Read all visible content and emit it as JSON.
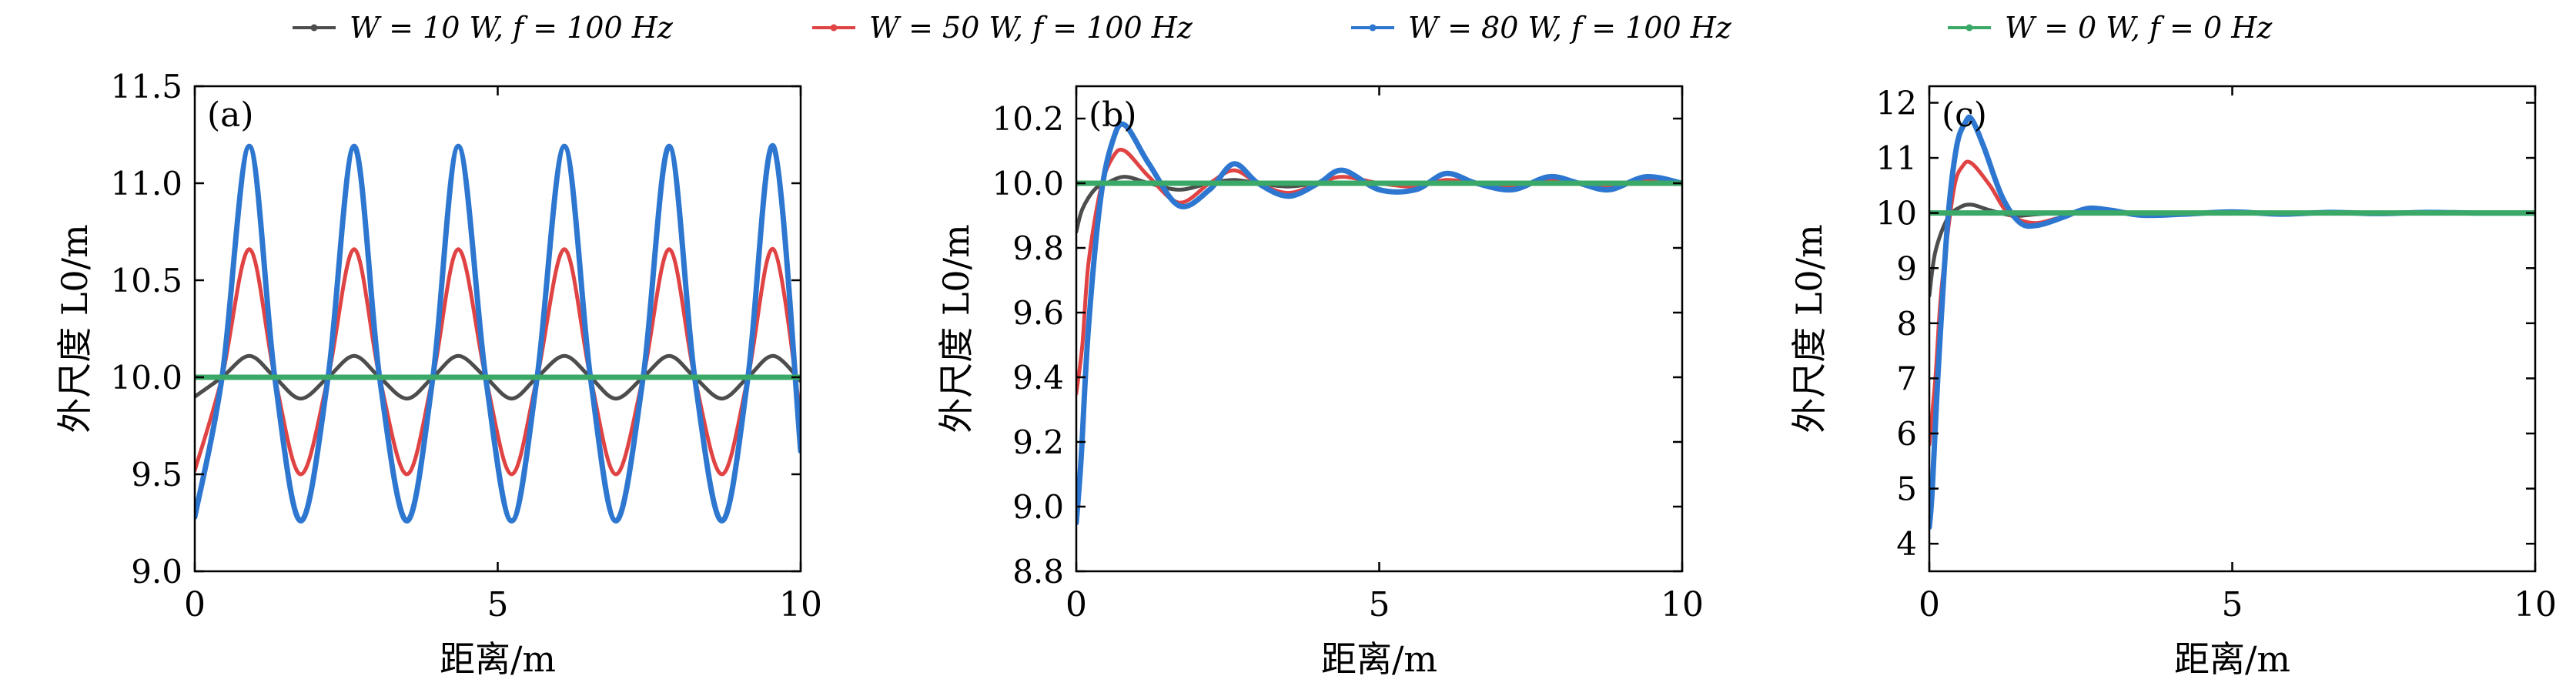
{
  "legend": [
    {
      "label": "W = 10 W, f = 100 Hz",
      "color": "#4d4d4d"
    },
    {
      "label": "W = 50 W, f = 100 Hz",
      "color": "#e04343"
    },
    {
      "label": "W = 80 W, f = 100 Hz",
      "color": "#2e77d0"
    },
    {
      "label": "W = 0 W, f = 0 Hz",
      "color": "#3aa867"
    }
  ],
  "chart_data": [
    {
      "type": "line",
      "panel_label": "(a)",
      "xlabel": "距离/m",
      "ylabel": "外尺度 L0/m",
      "xlim": [
        0,
        10
      ],
      "ylim": [
        9.0,
        11.5
      ],
      "xticks": [
        0,
        5,
        10
      ],
      "yticks": [
        9.0,
        9.5,
        10.0,
        10.5,
        11.0,
        11.5
      ],
      "ytick_labels": [
        "9.0",
        "9.5",
        "10.0",
        "10.5",
        "11.0",
        "11.5"
      ],
      "series": [
        {
          "name": "W = 10 W, f = 100 Hz",
          "color": "#4d4d4d",
          "x": [
            0.0,
            0.45,
            0.9,
            1.32,
            1.75,
            2.2,
            2.63,
            3.05,
            3.5,
            3.93,
            4.35,
            4.8,
            5.23,
            5.65,
            6.1,
            6.53,
            6.95,
            7.4,
            7.83,
            8.25,
            8.7,
            9.13,
            9.55,
            10.0
          ],
          "y": [
            9.9,
            10.0,
            10.11,
            10.0,
            9.89,
            10.0,
            10.11,
            10.0,
            9.89,
            10.0,
            10.11,
            10.0,
            9.89,
            10.0,
            10.11,
            10.0,
            9.89,
            10.0,
            10.11,
            10.0,
            9.89,
            10.0,
            10.11,
            9.98
          ]
        },
        {
          "name": "W = 50 W, f = 100 Hz",
          "color": "#e04343",
          "x": [
            0.0,
            0.45,
            0.9,
            1.32,
            1.75,
            2.2,
            2.63,
            3.05,
            3.5,
            3.93,
            4.35,
            4.8,
            5.23,
            5.65,
            6.1,
            6.53,
            6.95,
            7.4,
            7.83,
            8.25,
            8.7,
            9.13,
            9.55,
            10.0
          ],
          "y": [
            9.52,
            10.0,
            10.66,
            10.0,
            9.5,
            10.0,
            10.66,
            10.0,
            9.5,
            10.0,
            10.66,
            10.0,
            9.5,
            10.0,
            10.66,
            10.0,
            9.5,
            10.0,
            10.66,
            10.0,
            9.5,
            10.0,
            10.66,
            9.8
          ]
        },
        {
          "name": "W = 80 W, f = 100 Hz",
          "color": "#2e77d0",
          "x": [
            0.0,
            0.45,
            0.9,
            1.32,
            1.75,
            2.2,
            2.63,
            3.05,
            3.5,
            3.93,
            4.35,
            4.8,
            5.23,
            5.65,
            6.1,
            6.53,
            6.95,
            7.4,
            7.83,
            8.25,
            8.7,
            9.13,
            9.55,
            10.0
          ],
          "y": [
            9.28,
            10.0,
            11.19,
            10.0,
            9.26,
            10.0,
            11.19,
            10.0,
            9.26,
            10.0,
            11.19,
            10.0,
            9.26,
            10.0,
            11.19,
            10.0,
            9.26,
            10.0,
            11.19,
            10.0,
            9.26,
            10.0,
            11.19,
            9.62
          ]
        },
        {
          "name": "W = 0 W, f = 0 Hz",
          "color": "#3aa867",
          "x": [
            0,
            10
          ],
          "y": [
            10.0,
            10.0
          ]
        }
      ]
    },
    {
      "type": "line",
      "panel_label": "(b)",
      "xlabel": "距离/m",
      "ylabel": "外尺度 L0/m",
      "xlim": [
        0,
        10
      ],
      "ylim": [
        8.8,
        10.3
      ],
      "xticks": [
        0,
        5,
        10
      ],
      "yticks": [
        8.8,
        9.0,
        9.2,
        9.4,
        9.6,
        9.8,
        10.0,
        10.2
      ],
      "ytick_labels": [
        "8.8",
        "9.0",
        "9.2",
        "9.4",
        "9.6",
        "9.8",
        "10.0",
        "10.2"
      ],
      "series": [
        {
          "name": "W = 10 W, f = 100 Hz",
          "color": "#4d4d4d",
          "x": [
            0.0,
            0.1,
            0.3,
            0.5,
            0.8,
            1.2,
            1.7,
            2.2,
            2.6,
            3.0,
            3.5,
            4.0,
            4.5,
            5.0,
            6.0,
            7.0,
            8.0,
            9.0,
            10.0
          ],
          "y": [
            9.85,
            9.92,
            9.98,
            10.0,
            10.02,
            10.0,
            9.98,
            10.0,
            10.01,
            10.0,
            9.99,
            10.0,
            10.0,
            10.0,
            10.0,
            10.0,
            10.0,
            10.0,
            10.0
          ]
        },
        {
          "name": "W = 50 W, f = 100 Hz",
          "color": "#e04343",
          "x": [
            0.0,
            0.1,
            0.2,
            0.4,
            0.6,
            0.8,
            1.2,
            1.7,
            2.2,
            2.6,
            3.0,
            3.5,
            4.0,
            4.4,
            5.0,
            5.6,
            6.1,
            6.6,
            7.2,
            7.8,
            8.3,
            8.8,
            9.4,
            10.0
          ],
          "y": [
            9.35,
            9.5,
            9.75,
            9.98,
            10.08,
            10.1,
            10.02,
            9.94,
            10.0,
            10.04,
            10.0,
            9.97,
            10.0,
            10.02,
            10.0,
            9.99,
            10.01,
            10.0,
            9.99,
            10.01,
            10.0,
            9.99,
            10.01,
            10.0
          ]
        },
        {
          "name": "W = 80 W, f = 100 Hz",
          "color": "#2e77d0",
          "x": [
            0.0,
            0.08,
            0.2,
            0.4,
            0.6,
            0.8,
            1.2,
            1.7,
            2.2,
            2.6,
            3.0,
            3.5,
            4.0,
            4.4,
            5.0,
            5.6,
            6.1,
            6.6,
            7.2,
            7.8,
            8.3,
            8.8,
            9.4,
            10.0
          ],
          "y": [
            8.95,
            9.15,
            9.55,
            9.95,
            10.13,
            10.18,
            10.06,
            9.93,
            9.98,
            10.06,
            10.0,
            9.96,
            10.0,
            10.04,
            9.98,
            9.98,
            10.03,
            10.0,
            9.98,
            10.02,
            10.0,
            9.98,
            10.02,
            10.0
          ]
        },
        {
          "name": "W = 0 W, f = 0 Hz",
          "color": "#3aa867",
          "x": [
            0,
            10
          ],
          "y": [
            10.0,
            10.0
          ]
        }
      ]
    },
    {
      "type": "line",
      "panel_label": "(c)",
      "xlabel": "距离/m",
      "ylabel": "外尺度 L0/m",
      "xlim": [
        0,
        10
      ],
      "ylim": [
        3.5,
        12.3
      ],
      "xticks": [
        0,
        5,
        10
      ],
      "yticks": [
        4,
        5,
        6,
        7,
        8,
        9,
        10,
        11,
        12
      ],
      "ytick_labels": [
        "4",
        "5",
        "6",
        "7",
        "8",
        "9",
        "10",
        "11",
        "12"
      ],
      "series": [
        {
          "name": "W = 10 W, f = 100 Hz",
          "color": "#4d4d4d",
          "x": [
            0.0,
            0.1,
            0.3,
            0.5,
            0.7,
            1.0,
            1.4,
            1.8,
            2.5,
            3.5,
            5.0,
            7.0,
            10.0
          ],
          "y": [
            8.5,
            9.3,
            9.9,
            10.1,
            10.15,
            10.05,
            9.95,
            9.98,
            10.02,
            10.0,
            10.0,
            10.0,
            10.0
          ]
        },
        {
          "name": "W = 50 W, f = 100 Hz",
          "color": "#e04343",
          "x": [
            0.0,
            0.1,
            0.2,
            0.4,
            0.55,
            0.7,
            1.0,
            1.3,
            1.7,
            2.1,
            2.6,
            3.2,
            3.8,
            4.5,
            5.2,
            6.0,
            7.0,
            8.0,
            9.0,
            10.0
          ],
          "y": [
            5.8,
            7.0,
            8.6,
            10.4,
            10.85,
            10.9,
            10.5,
            10.0,
            9.82,
            9.9,
            10.05,
            10.02,
            9.97,
            10.0,
            10.01,
            9.99,
            10.0,
            10.0,
            10.0,
            10.0
          ]
        },
        {
          "name": "W = 80 W, f = 100 Hz",
          "color": "#2e77d0",
          "x": [
            0.0,
            0.05,
            0.15,
            0.3,
            0.45,
            0.6,
            0.7,
            0.9,
            1.2,
            1.5,
            1.8,
            2.2,
            2.6,
            3.0,
            3.5,
            4.2,
            5.0,
            5.8,
            6.6,
            7.4,
            8.2,
            9.0,
            10.0
          ],
          "y": [
            4.3,
            5.0,
            7.2,
            9.8,
            11.2,
            11.65,
            11.7,
            11.2,
            10.3,
            9.82,
            9.78,
            9.92,
            10.08,
            10.05,
            9.96,
            9.98,
            10.02,
            9.98,
            10.01,
            9.99,
            10.01,
            10.0,
            10.0
          ]
        },
        {
          "name": "W = 0 W, f = 0 Hz",
          "color": "#3aa867",
          "x": [
            0,
            10
          ],
          "y": [
            10.0,
            10.0
          ]
        }
      ]
    }
  ]
}
